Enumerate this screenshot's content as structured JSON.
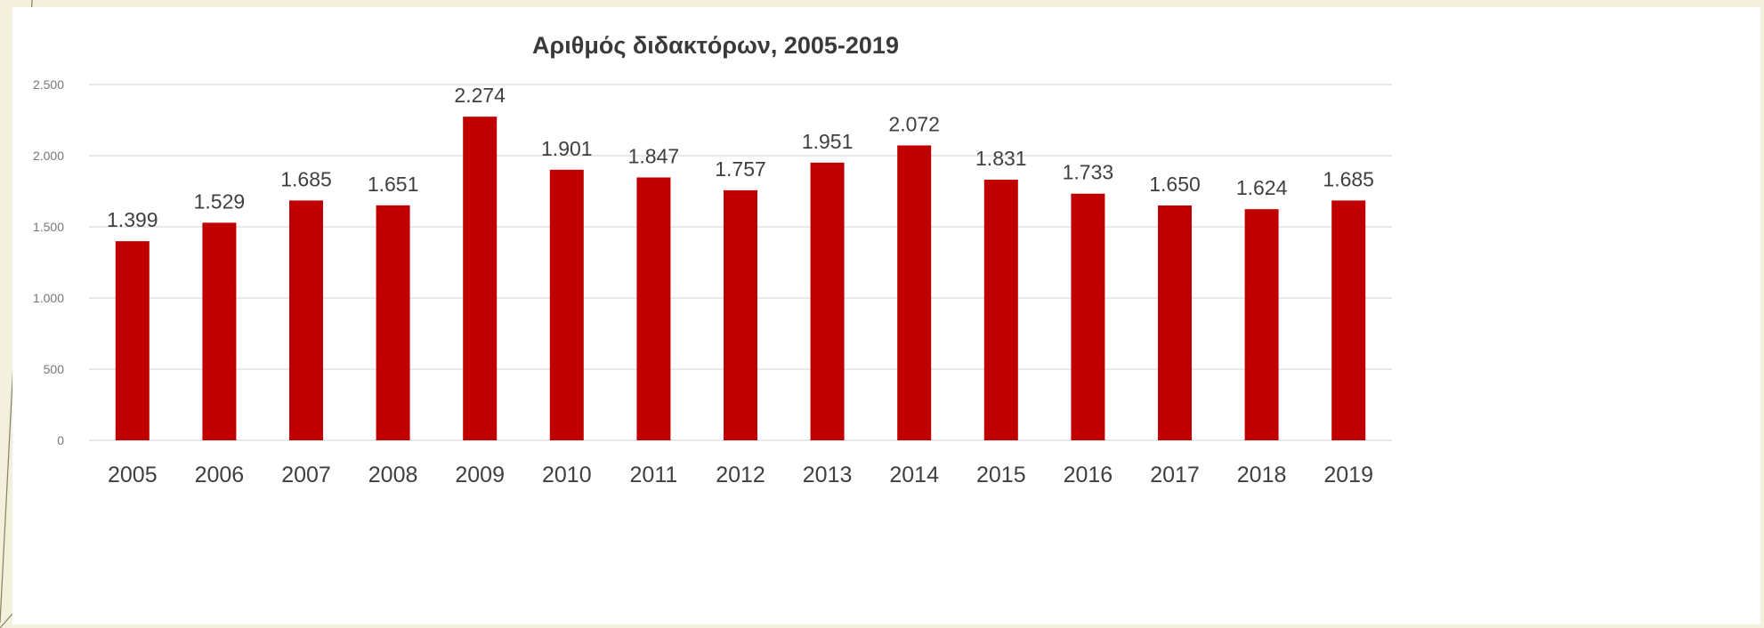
{
  "chart_data": {
    "type": "bar",
    "title": "Αριθμός διδακτόρων, 2005-2019",
    "xlabel": "",
    "ylabel": "",
    "ylim": [
      0,
      2500
    ],
    "yticks": [
      0,
      500,
      1000,
      1500,
      2000,
      2500
    ],
    "ytick_labels": [
      "0",
      "500",
      "1.000",
      "1.500",
      "2.000",
      "2.500"
    ],
    "categories": [
      "2005",
      "2006",
      "2007",
      "2008",
      "2009",
      "2010",
      "2011",
      "2012",
      "2013",
      "2014",
      "2015",
      "2016",
      "2017",
      "2018",
      "2019"
    ],
    "values": [
      1399,
      1529,
      1685,
      1651,
      2274,
      1901,
      1847,
      1757,
      1951,
      2072,
      1831,
      1733,
      1650,
      1624,
      1685
    ],
    "data_labels": [
      "1.399",
      "1.529",
      "1.685",
      "1.651",
      "2.274",
      "1.901",
      "1.847",
      "1.757",
      "1.951",
      "2.072",
      "1.831",
      "1.733",
      "1.650",
      "1.624",
      "1.685"
    ],
    "bar_color": "#c00000",
    "grid": true,
    "legend": "none"
  },
  "colors": {
    "background": "#f3f0de",
    "plot_background": "#ffffff",
    "bar": "#c00000"
  }
}
